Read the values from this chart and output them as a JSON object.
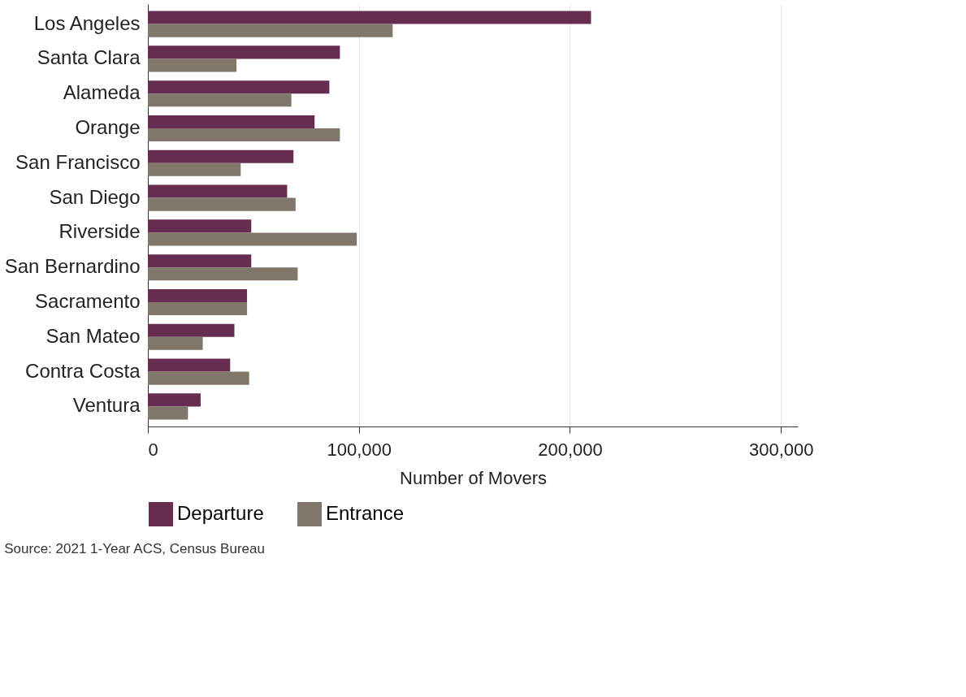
{
  "chart_data": {
    "type": "bar",
    "orientation": "horizontal",
    "xlabel": "Number of Movers",
    "categories": [
      "Los Angeles",
      "Santa Clara",
      "Alameda",
      "Orange",
      "San Francisco",
      "San Diego",
      "Riverside",
      "San Bernardino",
      "Sacramento",
      "San Mateo",
      "Contra Costa",
      "Ventura"
    ],
    "series": [
      {
        "name": "Departure",
        "color": "#662d50",
        "values": [
          210000,
          91000,
          86000,
          79000,
          69000,
          66000,
          49000,
          49000,
          47000,
          41000,
          39000,
          25000
        ]
      },
      {
        "name": "Entrance",
        "color": "#80766a",
        "values": [
          116000,
          42000,
          68000,
          91000,
          44000,
          70000,
          99000,
          71000,
          47000,
          26000,
          48000,
          19000
        ]
      }
    ],
    "xlim": [
      0,
      308000
    ],
    "xticks": [
      0,
      {
        "value": 100000,
        "label": "100,000"
      },
      {
        "value": 200000,
        "label": "200,000"
      },
      {
        "value": 300000,
        "label": "300,000"
      }
    ],
    "grid": "x",
    "legend": "bottom",
    "annotations": [
      "Source: 2021 1-Year ACS, Census Bureau"
    ]
  }
}
